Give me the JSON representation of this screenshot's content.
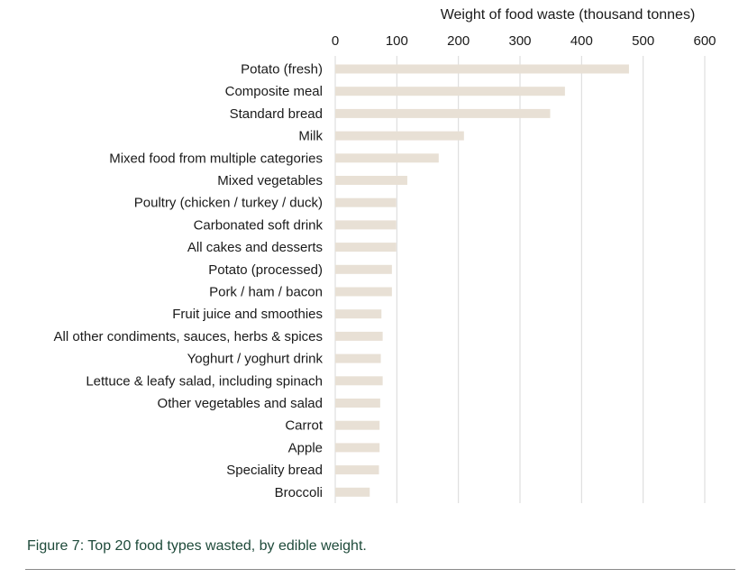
{
  "chart_data": {
    "type": "bar",
    "orientation": "horizontal",
    "xlabel": "Weight of food waste (thousand tonnes)",
    "xaxis_position": "top",
    "xlim": [
      0,
      600
    ],
    "xticks": [
      0,
      100,
      200,
      300,
      400,
      500,
      600
    ],
    "grid": "vertical",
    "bar_color": "#e8e0d5",
    "grid_color": "#d9d9d9",
    "categories": [
      "Potato (fresh)",
      "Composite meal",
      "Standard bread",
      "Milk",
      "Mixed food from multiple categories",
      "Mixed vegetables",
      "Poultry (chicken / turkey / duck)",
      "Carbonated soft drink",
      "All cakes and desserts",
      "Potato (processed)",
      "Pork / ham / bacon",
      "Fruit juice and smoothies",
      "All other condiments, sauces, herbs & spices",
      "Yoghurt / yoghurt drink",
      "Lettuce & leafy salad, including spinach",
      "Other vegetables and salad",
      "Carrot",
      "Apple",
      "Speciality bread",
      "Broccoli"
    ],
    "values": [
      477,
      373,
      349,
      209,
      168,
      117,
      99,
      99,
      99,
      92,
      92,
      75,
      77,
      74,
      77,
      73,
      72,
      72,
      71,
      56
    ]
  },
  "caption": "Figure 7: Top 20 food types wasted, by edible weight."
}
